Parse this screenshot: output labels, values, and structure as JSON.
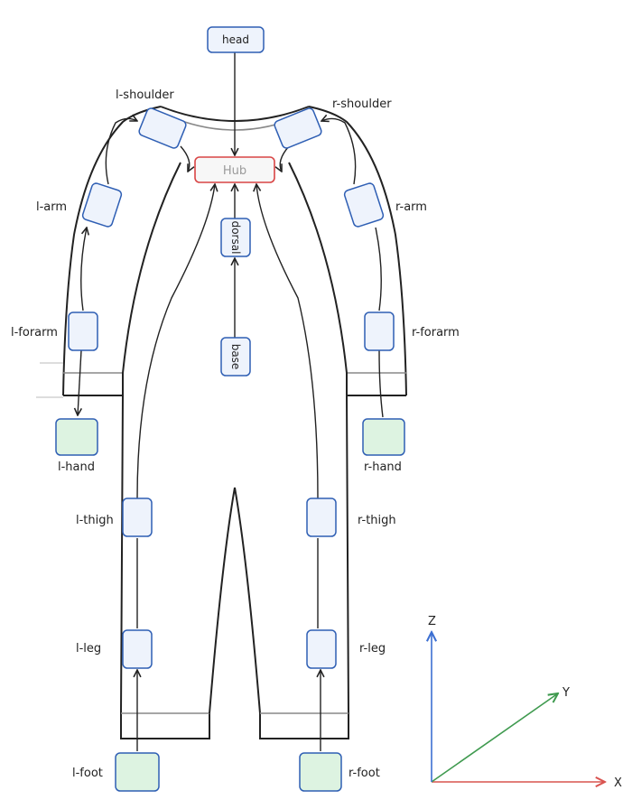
{
  "colors": {
    "outline": "#222222",
    "outline_light": "#888888",
    "sensor_fill": "#eef3fc",
    "sensor_stroke": "#2f5fb4",
    "hand_fill": "#ddf3e1",
    "hub_fill": "#f7f7f7",
    "hub_stroke": "#d94545",
    "hub_text": "#9b9b9b",
    "axis_x": "#d9534f",
    "axis_y": "#3f9a4f",
    "axis_z": "#3c6fd2"
  },
  "diagram": {
    "hub": "Hub",
    "head": "head",
    "dorsal": "dorsal",
    "base": "base",
    "labels": {
      "l_shoulder": "l-shoulder",
      "r_shoulder": "r-shoulder",
      "l_arm": "l-arm",
      "r_arm": "r-arm",
      "l_forarm": "l-forarm",
      "r_forarm": "r-forarm",
      "l_hand": "l-hand",
      "r_hand": "r-hand",
      "l_thigh": "l-thigh",
      "r_thigh": "r-thigh",
      "l_leg": "l-leg",
      "r_leg": "r-leg",
      "l_foot": "l-foot",
      "r_foot": "r-foot"
    }
  },
  "axes": {
    "x": "X",
    "y": "Y",
    "z": "Z"
  }
}
